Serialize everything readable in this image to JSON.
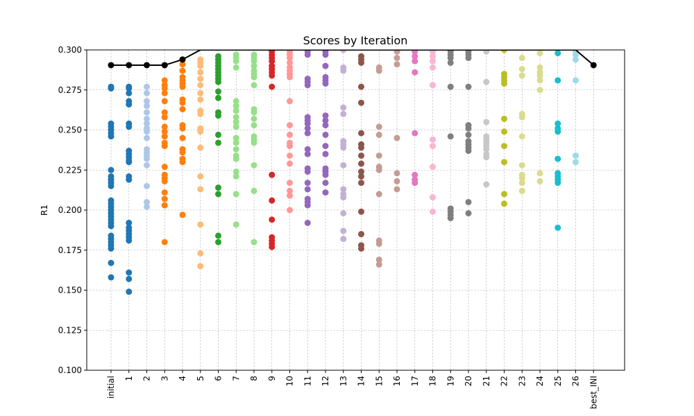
{
  "chart_data": {
    "type": "scatter",
    "title": "Scores by Iteration",
    "xlabel": "",
    "ylabel": "R1",
    "ylim": [
      0.1,
      0.3
    ],
    "yticks": [
      "0.100",
      "0.125",
      "0.150",
      "0.175",
      "0.200",
      "0.225",
      "0.250",
      "0.275",
      "0.300"
    ],
    "ytick_values": [
      0.1,
      0.125,
      0.15,
      0.175,
      0.2,
      0.225,
      0.25,
      0.275,
      0.3
    ],
    "categories": [
      "initial",
      "1",
      "2",
      "3",
      "4",
      "5",
      "6",
      "7",
      "8",
      "9",
      "10",
      "11",
      "12",
      "13",
      "14",
      "15",
      "16",
      "17",
      "18",
      "19",
      "20",
      "21",
      "22",
      "23",
      "24",
      "25",
      "26",
      "best_INI"
    ],
    "grid": true,
    "series": [
      {
        "category": "initial",
        "color": "#1f77b4",
        "values": [
          0.277,
          0.276,
          0.254,
          0.252,
          0.25,
          0.248,
          0.246,
          0.225,
          0.221,
          0.219,
          0.217,
          0.215,
          0.206,
          0.204,
          0.202,
          0.2,
          0.198,
          0.196,
          0.194,
          0.192,
          0.19,
          0.184,
          0.182,
          0.18,
          0.178,
          0.176,
          0.167,
          0.158
        ]
      },
      {
        "category": "1",
        "color": "#1f77b4",
        "values": [
          0.277,
          0.276,
          0.273,
          0.268,
          0.266,
          0.254,
          0.252,
          0.237,
          0.235,
          0.233,
          0.231,
          0.23,
          0.221,
          0.219,
          0.192,
          0.189,
          0.187,
          0.185,
          0.183,
          0.181,
          0.161,
          0.157,
          0.149
        ]
      },
      {
        "category": "2",
        "color": "#aec7e8",
        "values": [
          0.277,
          0.273,
          0.268,
          0.265,
          0.261,
          0.257,
          0.254,
          0.251,
          0.249,
          0.245,
          0.238,
          0.236,
          0.234,
          0.232,
          0.228,
          0.215,
          0.205,
          0.202
        ]
      },
      {
        "category": "3",
        "color": "#ff7f0e",
        "values": [
          0.281,
          0.278,
          0.276,
          0.273,
          0.268,
          0.261,
          0.258,
          0.252,
          0.249,
          0.246,
          0.242,
          0.24,
          0.227,
          0.222,
          0.22,
          0.218,
          0.211,
          0.207,
          0.203,
          0.18
        ]
      },
      {
        "category": "4",
        "color": "#ff7f0e",
        "values": [
          0.294,
          0.291,
          0.287,
          0.283,
          0.281,
          0.279,
          0.277,
          0.269,
          0.267,
          0.263,
          0.253,
          0.251,
          0.245,
          0.238,
          0.236,
          0.232,
          0.23,
          0.197
        ]
      },
      {
        "category": "5",
        "color": "#ffbb78",
        "values": [
          0.294,
          0.292,
          0.29,
          0.286,
          0.282,
          0.278,
          0.273,
          0.269,
          0.262,
          0.26,
          0.251,
          0.249,
          0.239,
          0.221,
          0.213,
          0.191,
          0.173,
          0.165
        ]
      },
      {
        "category": "6",
        "color": "#2ca02c",
        "values": [
          0.296,
          0.294,
          0.292,
          0.29,
          0.288,
          0.286,
          0.284,
          0.282,
          0.28,
          0.274,
          0.27,
          0.261,
          0.259,
          0.247,
          0.242,
          0.214,
          0.21,
          0.184,
          0.18
        ]
      },
      {
        "category": "7",
        "color": "#98df8a",
        "values": [
          0.297,
          0.295,
          0.293,
          0.289,
          0.268,
          0.265,
          0.262,
          0.258,
          0.255,
          0.252,
          0.245,
          0.242,
          0.238,
          0.234,
          0.232,
          0.224,
          0.221,
          0.21,
          0.191
        ]
      },
      {
        "category": "8",
        "color": "#98df8a",
        "values": [
          0.297,
          0.295,
          0.293,
          0.29,
          0.287,
          0.285,
          0.283,
          0.278,
          0.263,
          0.261,
          0.257,
          0.253,
          0.246,
          0.244,
          0.242,
          0.228,
          0.212,
          0.18
        ]
      },
      {
        "category": "9",
        "color": "#d62728",
        "values": [
          0.299,
          0.297,
          0.295,
          0.293,
          0.29,
          0.288,
          0.286,
          0.284,
          0.277,
          0.222,
          0.206,
          0.194,
          0.183,
          0.181,
          0.179,
          0.177
        ]
      },
      {
        "category": "10",
        "color": "#ff9896",
        "values": [
          0.299,
          0.297,
          0.295,
          0.292,
          0.289,
          0.287,
          0.285,
          0.283,
          0.268,
          0.253,
          0.247,
          0.242,
          0.24,
          0.234,
          0.229,
          0.217,
          0.212,
          0.209,
          0.2
        ]
      },
      {
        "category": "11",
        "color": "#9467bd",
        "values": [
          0.299,
          0.297,
          0.282,
          0.28,
          0.278,
          0.258,
          0.256,
          0.254,
          0.251,
          0.248,
          0.238,
          0.235,
          0.226,
          0.224,
          0.217,
          0.213,
          0.207,
          0.205,
          0.203,
          0.192
        ]
      },
      {
        "category": "12",
        "color": "#9467bd",
        "values": [
          0.299,
          0.297,
          0.29,
          0.283,
          0.281,
          0.279,
          0.259,
          0.256,
          0.253,
          0.247,
          0.24,
          0.235,
          0.226,
          0.224,
          0.222,
          0.217,
          0.211
        ]
      },
      {
        "category": "13",
        "color": "#c5b0d5",
        "values": [
          0.3,
          0.289,
          0.287,
          0.264,
          0.26,
          0.243,
          0.241,
          0.239,
          0.228,
          0.213,
          0.21,
          0.208,
          0.198,
          0.187,
          0.182
        ]
      },
      {
        "category": "14",
        "color": "#8c564b",
        "values": [
          0.296,
          0.294,
          0.292,
          0.277,
          0.267,
          0.248,
          0.241,
          0.239,
          0.234,
          0.229,
          0.224,
          0.221,
          0.217,
          0.199,
          0.185,
          0.178,
          0.176
        ]
      },
      {
        "category": "15",
        "color": "#c49c94",
        "values": [
          0.289,
          0.287,
          0.252,
          0.247,
          0.234,
          0.227,
          0.225,
          0.21,
          0.181,
          0.179,
          0.169,
          0.166
        ]
      },
      {
        "category": "16",
        "color": "#c49c94",
        "values": [
          0.299,
          0.295,
          0.291,
          0.245,
          0.223,
          0.218,
          0.213
        ]
      },
      {
        "category": "17",
        "color": "#e377c2",
        "values": [
          0.299,
          0.296,
          0.293,
          0.286,
          0.248,
          0.222,
          0.219,
          0.217
        ]
      },
      {
        "category": "18",
        "color": "#f7b6d2",
        "values": [
          0.299,
          0.296,
          0.293,
          0.289,
          0.278,
          0.244,
          0.24,
          0.227,
          0.208,
          0.199
        ]
      },
      {
        "category": "19",
        "color": "#7f7f7f",
        "values": [
          0.299,
          0.297,
          0.295,
          0.292,
          0.277,
          0.246,
          0.201,
          0.199,
          0.197,
          0.195
        ]
      },
      {
        "category": "20",
        "color": "#7f7f7f",
        "values": [
          0.299,
          0.297,
          0.295,
          0.277,
          0.253,
          0.251,
          0.247,
          0.243,
          0.241,
          0.239,
          0.237,
          0.205,
          0.198
        ]
      },
      {
        "category": "21",
        "color": "#c7c7c7",
        "values": [
          0.299,
          0.28,
          0.255,
          0.246,
          0.244,
          0.242,
          0.24,
          0.238,
          0.235,
          0.233,
          0.216
        ]
      },
      {
        "category": "22",
        "color": "#bcbd22",
        "values": [
          0.3,
          0.285,
          0.283,
          0.281,
          0.279,
          0.257,
          0.249,
          0.24,
          0.23,
          0.21,
          0.204
        ]
      },
      {
        "category": "23",
        "color": "#dbdb8d",
        "values": [
          0.295,
          0.288,
          0.284,
          0.26,
          0.258,
          0.246,
          0.228,
          0.222,
          0.22,
          0.217,
          0.212
        ]
      },
      {
        "category": "24",
        "color": "#dbdb8d",
        "values": [
          0.298,
          0.289,
          0.286,
          0.284,
          0.281,
          0.275,
          0.223,
          0.218
        ]
      },
      {
        "category": "25",
        "color": "#17becf",
        "values": [
          0.298,
          0.281,
          0.254,
          0.251,
          0.249,
          0.232,
          0.223,
          0.221,
          0.219,
          0.217,
          0.189
        ]
      },
      {
        "category": "26",
        "color": "#9edae5",
        "values": [
          0.299,
          0.297,
          0.294,
          0.281,
          0.234,
          0.23
        ]
      }
    ],
    "best_line": {
      "color": "#000000",
      "points": [
        {
          "category": "initial",
          "value": 0.2905
        },
        {
          "category": "1",
          "value": 0.2905
        },
        {
          "category": "2",
          "value": 0.2905
        },
        {
          "category": "3",
          "value": 0.2905
        },
        {
          "category": "4",
          "value": 0.294
        },
        {
          "category": "5",
          "value": 0.3
        },
        {
          "category": "26",
          "value": 0.3
        },
        {
          "category": "best_INI",
          "value": 0.2905
        }
      ],
      "markers": [
        {
          "category": "initial",
          "value": 0.2905
        },
        {
          "category": "1",
          "value": 0.2905
        },
        {
          "category": "2",
          "value": 0.2905
        },
        {
          "category": "3",
          "value": 0.2905
        },
        {
          "category": "4",
          "value": 0.294
        },
        {
          "category": "best_INI",
          "value": 0.2905
        }
      ]
    }
  }
}
